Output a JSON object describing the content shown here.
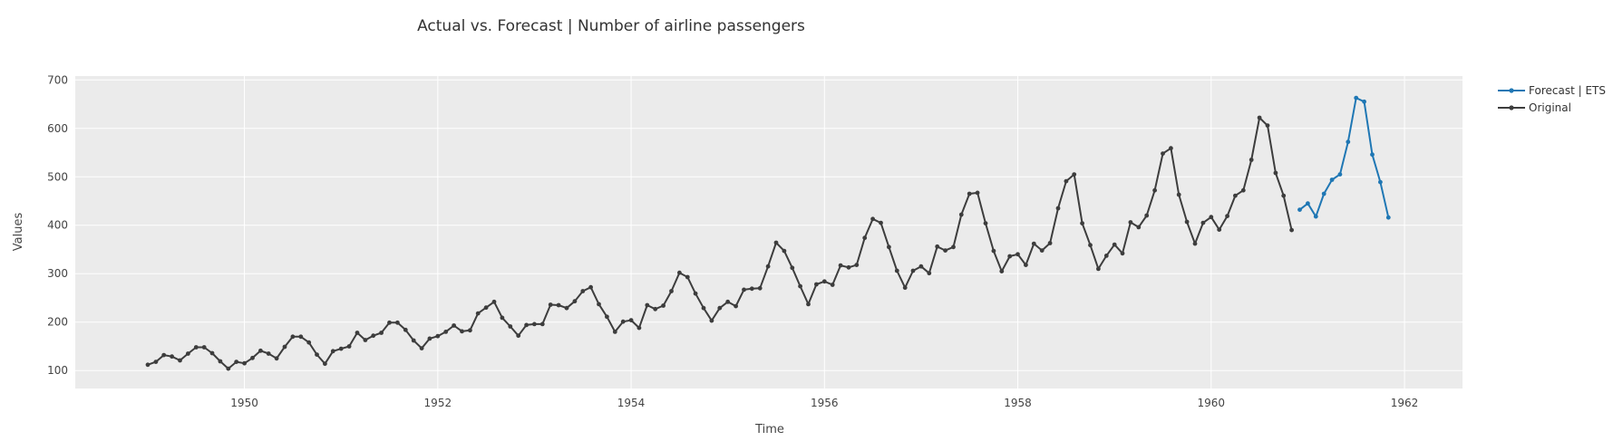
{
  "chart_data": {
    "type": "line",
    "title": "Actual vs. Forecast | Number of airline passengers",
    "xlabel": "Time",
    "ylabel": "Values",
    "xlim": [
      1948.25,
      1962.6
    ],
    "ylim": [
      63,
      708
    ],
    "x_ticks": [
      1950,
      1952,
      1954,
      1956,
      1958,
      1960,
      1962
    ],
    "y_ticks": [
      100,
      200,
      300,
      400,
      500,
      600,
      700
    ],
    "grid": true,
    "legend_position": "top-right",
    "series": [
      {
        "name": "Forecast | ETS",
        "color": "#1f77b4",
        "x": [
          1960.9167,
          1961.0,
          1961.0833,
          1961.1667,
          1961.25,
          1961.3333,
          1961.4167,
          1961.5,
          1961.5833,
          1961.6667,
          1961.75,
          1961.8333
        ],
        "values": [
          432,
          445,
          418,
          465,
          494,
          505,
          572,
          663,
          655,
          546,
          489,
          416
        ]
      },
      {
        "name": "Original",
        "color": "#3d3d3d",
        "x_start": 1949.0,
        "x_step": 0.083333,
        "values": [
          112,
          118,
          132,
          129,
          121,
          135,
          148,
          148,
          136,
          119,
          104,
          118,
          115,
          126,
          141,
          135,
          125,
          149,
          170,
          170,
          158,
          133,
          114,
          140,
          145,
          150,
          178,
          163,
          172,
          178,
          199,
          199,
          184,
          162,
          146,
          166,
          171,
          180,
          193,
          181,
          183,
          218,
          230,
          242,
          209,
          191,
          172,
          194,
          196,
          196,
          236,
          235,
          229,
          243,
          264,
          272,
          237,
          211,
          180,
          201,
          204,
          188,
          235,
          227,
          234,
          264,
          302,
          293,
          259,
          229,
          203,
          229,
          242,
          233,
          267,
          269,
          270,
          315,
          364,
          347,
          312,
          274,
          237,
          278,
          284,
          277,
          317,
          313,
          318,
          374,
          413,
          405,
          355,
          306,
          271,
          306,
          315,
          301,
          356,
          348,
          355,
          422,
          465,
          467,
          404,
          347,
          305,
          336,
          340,
          318,
          362,
          348,
          363,
          435,
          491,
          505,
          404,
          359,
          310,
          337,
          360,
          342,
          406,
          396,
          420,
          472,
          548,
          559,
          463,
          407,
          362,
          405,
          417,
          391,
          419,
          461,
          472,
          535,
          622,
          606,
          508,
          461,
          390
        ]
      }
    ]
  }
}
